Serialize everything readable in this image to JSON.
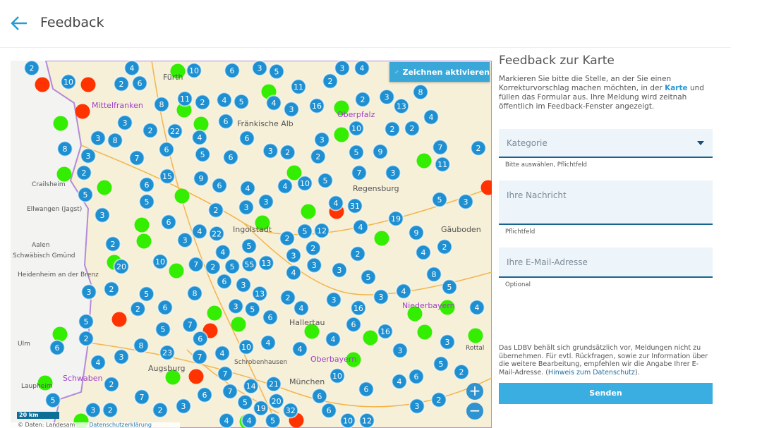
{
  "header": {
    "title": "Feedback",
    "back_icon": "arrow-left-icon"
  },
  "map": {
    "draw_button": "Zeichnen aktivieren",
    "zoom_in": "+",
    "zoom_out": "−",
    "scale": "20 km",
    "attribution": "© Daten: Landesam",
    "privacy_link": "Datenschutzerklärung",
    "colors": {
      "cluster": "#1e8fd0",
      "green": "#33ee00",
      "red": "#ff3300",
      "bavaria": "#f6f0d8",
      "outside": "#f3f3f1"
    },
    "labels": [
      "Fürth",
      "Fränkische Alb",
      "Oberpfalz",
      "Mittelfranken",
      "Regensburg",
      "Ingolstadt",
      "Hallertau",
      "Augsburg",
      "Niederbayern",
      "München",
      "Oberbayern",
      "Schwaben",
      "Gäuboden",
      "Crailsheim",
      "Ellwangen (Jagst)",
      "Aalen",
      "Schwäbisch Gmünd",
      "Heidenheim an der Brenz",
      "Ulm",
      "Laupheim",
      "Schrobenhausen",
      "Rottal"
    ],
    "clusters": [
      "2",
      "4",
      "10",
      "6",
      "3",
      "5",
      "3",
      "4",
      "10",
      "2",
      "6",
      "11",
      "2",
      "8",
      "8",
      "11",
      "2",
      "4",
      "5",
      "4",
      "3",
      "16",
      "2",
      "3",
      "13",
      "3",
      "6",
      "10",
      "2",
      "2",
      "4",
      "3",
      "8",
      "2",
      "22",
      "4",
      "6",
      "3",
      "8",
      "3",
      "7",
      "6",
      "5",
      "6",
      "3",
      "2",
      "2",
      "5",
      "9",
      "7",
      "2",
      "2",
      "15",
      "9",
      "7",
      "3",
      "11",
      "6",
      "6",
      "4",
      "4",
      "10",
      "5",
      "5",
      "5",
      "3",
      "4",
      "31",
      "5",
      "3",
      "3",
      "2",
      "3",
      "19",
      "6",
      "4",
      "22",
      "5",
      "12",
      "4",
      "9",
      "2",
      "3",
      "2",
      "2",
      "4",
      "5",
      "2",
      "2",
      "4",
      "20",
      "10",
      "7",
      "2",
      "5",
      "55",
      "13",
      "3",
      "4",
      "3",
      "3",
      "2",
      "5",
      "8",
      "6",
      "3",
      "3",
      "5",
      "8",
      "5",
      "13",
      "2",
      "3",
      "3",
      "4",
      "2",
      "6",
      "3",
      "5",
      "6",
      "4",
      "16",
      "4",
      "5",
      "6",
      "7",
      "5",
      "16",
      "2",
      "8",
      "23",
      "6",
      "4",
      "10",
      "4",
      "4",
      "4",
      "3",
      "6",
      "4",
      "3",
      "7",
      "3",
      "5",
      "7",
      "10",
      "2",
      "4",
      "6",
      "2",
      "7",
      "6",
      "7",
      "14",
      "21",
      "6",
      "6",
      "2",
      "5",
      "5",
      "3",
      "19",
      "20",
      "32",
      "6",
      "3",
      "3",
      "2",
      "2",
      "4",
      "4",
      "5",
      "12",
      "10"
    ],
    "green_points": 33,
    "red_points": 9
  },
  "panel": {
    "title": "Feedback zur Karte",
    "intro_before": "Markieren Sie bitte die Stelle, an der Sie einen Korrekturvorschlag machen möchten, in der ",
    "intro_link": "Karte",
    "intro_after": " und füllen das Formular aus. Ihre Meldung wird zeitnah öffentlich im Feedback-Fenster angezeigt.",
    "category": {
      "placeholder": "Kategorie",
      "hint": "Bitte auswählen,  Pflichtfeld"
    },
    "message": {
      "placeholder": "Ihre Nachricht",
      "hint": "Pflichtfeld"
    },
    "email": {
      "placeholder": "Ihre E-Mail-Adresse",
      "hint": "Optional"
    },
    "disclaimer_before": "Das LDBV behält sich grundsätzlich vor, Meldungen nicht zu übernehmen. Für evtl. Rückfragen, sowie zur Information über die weitere Bearbeitung, empfehlen wir die Angabe Ihrer E-Mail-Adresse. (",
    "disclaimer_link": "Hinweis zum Datenschutz",
    "disclaimer_after": ").",
    "submit": "Senden"
  }
}
